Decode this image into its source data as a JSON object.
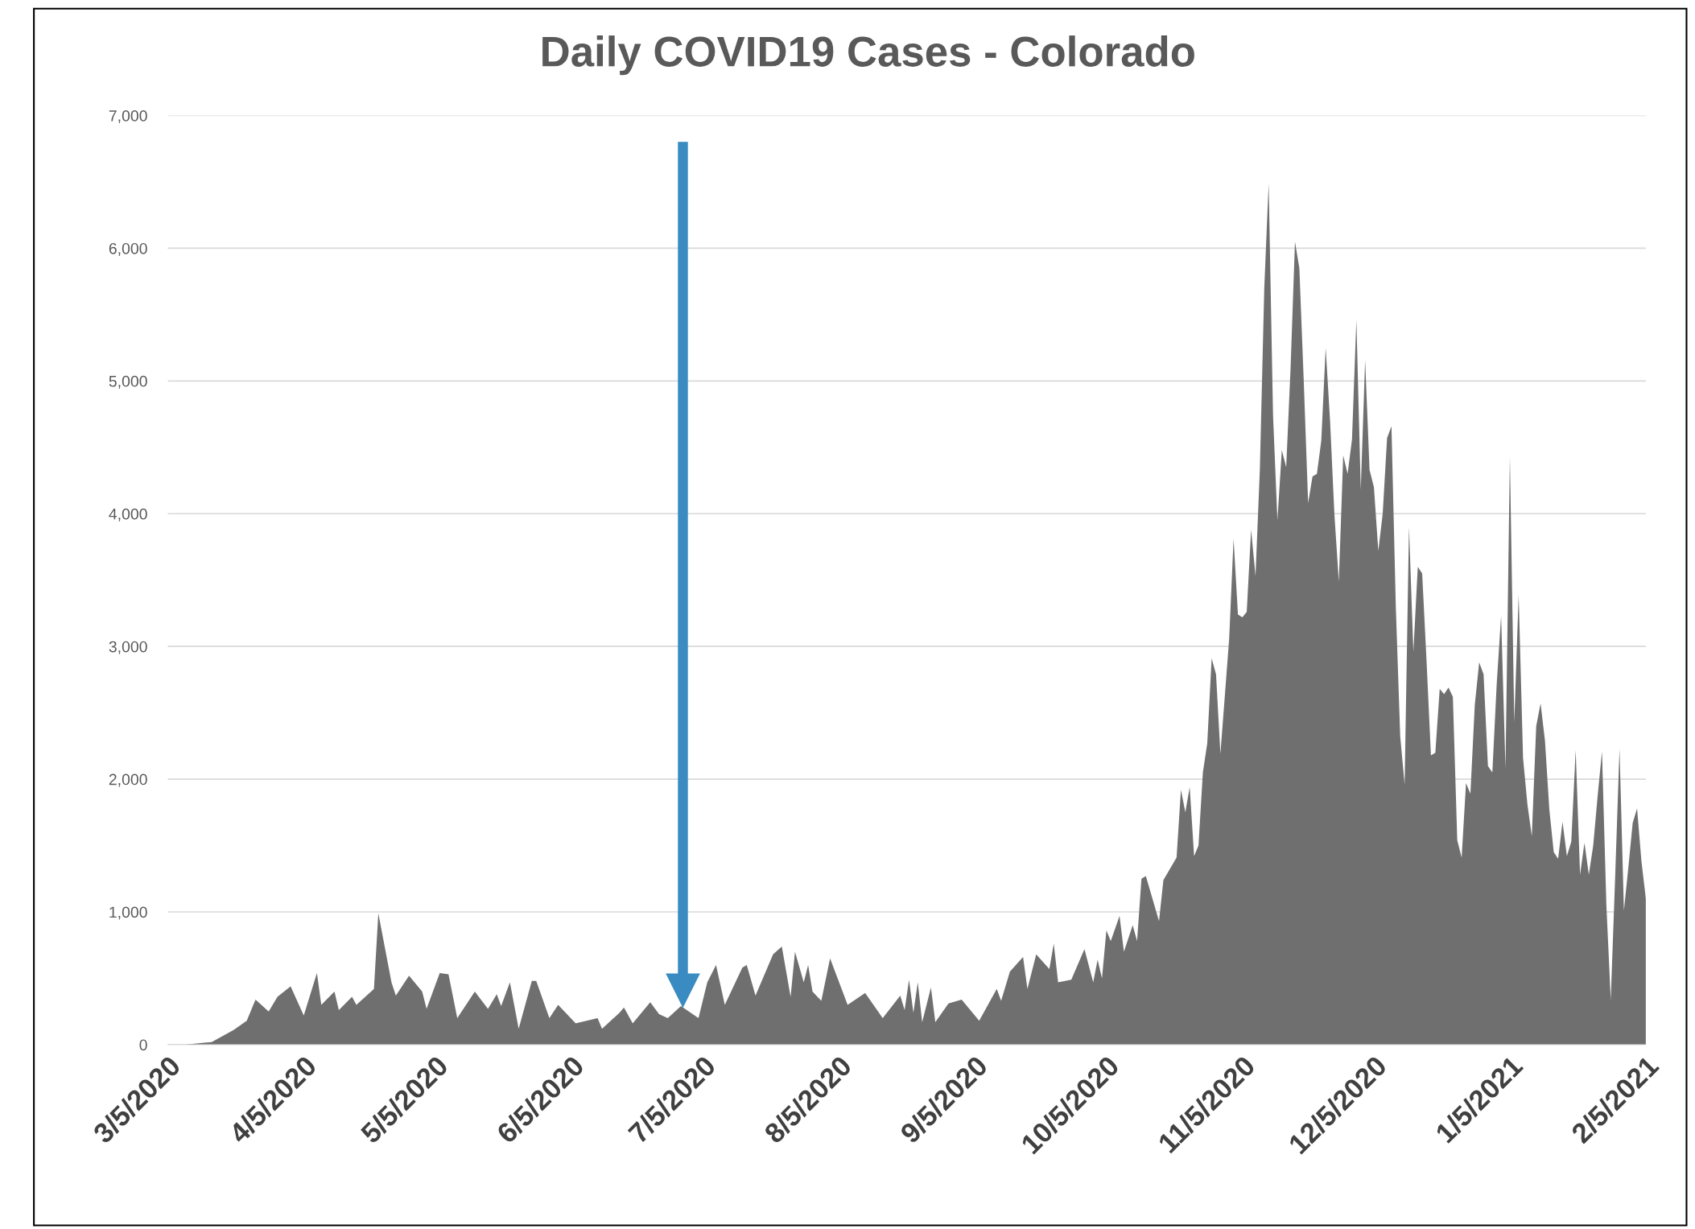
{
  "chart_data": {
    "type": "area",
    "title": "Daily COVID19 Cases - Colorado",
    "x": [
      "2020-03-09",
      "2020-03-15",
      "2020-03-20",
      "2020-03-23",
      "2020-03-25",
      "2020-03-28",
      "2020-03-30",
      "2020-04-02",
      "2020-04-05",
      "2020-04-08",
      "2020-04-09",
      "2020-04-12",
      "2020-04-13",
      "2020-04-16",
      "2020-04-17",
      "2020-04-21",
      "2020-04-22",
      "2020-04-25",
      "2020-04-26",
      "2020-04-29",
      "2020-05-02",
      "2020-05-03",
      "2020-05-06",
      "2020-05-08",
      "2020-05-10",
      "2020-05-14",
      "2020-05-17",
      "2020-05-19",
      "2020-05-20",
      "2020-05-22",
      "2020-05-24",
      "2020-05-27",
      "2020-05-28",
      "2020-05-31",
      "2020-06-02",
      "2020-06-06",
      "2020-06-11",
      "2020-06-12",
      "2020-06-16",
      "2020-06-17",
      "2020-06-19",
      "2020-06-23",
      "2020-06-25",
      "2020-06-27",
      "2020-06-30",
      "2020-07-04",
      "2020-07-06",
      "2020-07-08",
      "2020-07-10",
      "2020-07-14",
      "2020-07-15",
      "2020-07-17",
      "2020-07-21",
      "2020-07-23",
      "2020-07-25",
      "2020-07-26",
      "2020-07-28",
      "2020-07-29",
      "2020-07-30",
      "2020-08-01",
      "2020-08-03",
      "2020-08-07",
      "2020-08-11",
      "2020-08-15",
      "2020-08-19",
      "2020-08-20",
      "2020-08-21",
      "2020-08-22",
      "2020-08-23",
      "2020-08-24",
      "2020-08-26",
      "2020-08-27",
      "2020-08-30",
      "2020-09-02",
      "2020-09-06",
      "2020-09-10",
      "2020-09-11",
      "2020-09-13",
      "2020-09-16",
      "2020-09-17",
      "2020-09-19",
      "2020-09-22",
      "2020-09-23",
      "2020-09-24",
      "2020-09-27",
      "2020-09-30",
      "2020-10-02",
      "2020-10-03",
      "2020-10-04",
      "2020-10-05",
      "2020-10-06",
      "2020-10-08",
      "2020-10-09",
      "2020-10-11",
      "2020-10-12",
      "2020-10-13",
      "2020-10-14",
      "2020-10-17",
      "2020-10-18",
      "2020-10-21",
      "2020-10-22",
      "2020-10-23",
      "2020-10-24",
      "2020-10-25",
      "2020-10-26",
      "2020-10-27",
      "2020-10-28",
      "2020-10-29",
      "2020-10-30",
      "2020-10-31",
      "2020-11-02",
      "2020-11-03",
      "2020-11-04",
      "2020-11-05",
      "2020-11-06",
      "2020-11-07",
      "2020-11-08",
      "2020-11-09",
      "2020-11-10",
      "2020-11-11",
      "2020-11-12",
      "2020-11-13",
      "2020-11-14",
      "2020-11-15",
      "2020-11-16",
      "2020-11-17",
      "2020-11-18",
      "2020-11-19",
      "2020-11-20",
      "2020-11-21",
      "2020-11-22",
      "2020-11-23",
      "2020-11-24",
      "2020-11-25",
      "2020-11-26",
      "2020-11-27",
      "2020-11-28",
      "2020-11-29",
      "2020-11-30",
      "2020-12-01",
      "2020-12-02",
      "2020-12-03",
      "2020-12-04",
      "2020-12-05",
      "2020-12-06",
      "2020-12-07",
      "2020-12-08",
      "2020-12-09",
      "2020-12-10",
      "2020-12-11",
      "2020-12-12",
      "2020-12-13",
      "2020-12-14",
      "2020-12-15",
      "2020-12-16",
      "2020-12-17",
      "2020-12-18",
      "2020-12-19",
      "2020-12-20",
      "2020-12-21",
      "2020-12-22",
      "2020-12-23",
      "2020-12-24",
      "2020-12-25",
      "2020-12-26",
      "2020-12-27",
      "2020-12-28",
      "2020-12-29",
      "2020-12-30",
      "2020-12-31",
      "2021-01-01",
      "2021-01-02",
      "2021-01-03",
      "2021-01-04",
      "2021-01-05",
      "2021-01-06",
      "2021-01-07",
      "2021-01-08",
      "2021-01-09",
      "2021-01-10",
      "2021-01-11",
      "2021-01-12",
      "2021-01-13",
      "2021-01-14",
      "2021-01-15",
      "2021-01-16",
      "2021-01-17",
      "2021-01-18",
      "2021-01-19",
      "2021-01-20",
      "2021-01-21",
      "2021-01-22",
      "2021-01-23",
      "2021-01-24",
      "2021-01-25",
      "2021-01-26",
      "2021-01-27",
      "2021-01-28",
      "2021-01-29",
      "2021-01-30",
      "2021-01-31",
      "2021-02-01",
      "2021-02-02",
      "2021-02-03",
      "2021-02-04",
      "2021-02-05"
    ],
    "series": [
      {
        "color": "#6f6f6f",
        "values": [
          0,
          20,
          110,
          180,
          340,
          250,
          360,
          440,
          220,
          540,
          300,
          400,
          260,
          360,
          300,
          420,
          990,
          470,
          370,
          520,
          400,
          270,
          540,
          530,
          200,
          400,
          270,
          380,
          290,
          470,
          120,
          480,
          480,
          200,
          300,
          160,
          200,
          120,
          240,
          280,
          160,
          320,
          230,
          200,
          290,
          200,
          470,
          600,
          300,
          580,
          600,
          370,
          680,
          740,
          360,
          700,
          470,
          600,
          400,
          330,
          650,
          300,
          390,
          200,
          370,
          260,
          490,
          240,
          470,
          170,
          430,
          170,
          310,
          340,
          180,
          420,
          330,
          550,
          660,
          420,
          680,
          570,
          760,
          470,
          490,
          720,
          470,
          640,
          500,
          860,
          780,
          970,
          700,
          900,
          780,
          1250,
          1270,
          930,
          1240,
          1410,
          1920,
          1750,
          1940,
          1420,
          1500,
          2050,
          2270,
          2910,
          2790,
          2190,
          3060,
          3810,
          3240,
          3220,
          3260,
          3880,
          3530,
          4340,
          5700,
          6490,
          4740,
          3950,
          4480,
          4350,
          5100,
          6050,
          5850,
          5000,
          4080,
          4280,
          4300,
          4550,
          5250,
          4700,
          3990,
          3490,
          4440,
          4300,
          4560,
          5460,
          4180,
          5160,
          4330,
          4200,
          3720,
          4000,
          4570,
          4660,
          3290,
          2320,
          1960,
          3900,
          2960,
          3600,
          3550,
          2890,
          2180,
          2200,
          2680,
          2640,
          2690,
          2620,
          1540,
          1410,
          1970,
          1890,
          2560,
          2880,
          2790,
          2100,
          2050,
          2720,
          3230,
          2080,
          4430,
          2430,
          3390,
          2160,
          1810,
          1570,
          2400,
          2570,
          2290,
          1770,
          1450,
          1400,
          1680,
          1420,
          1530,
          2220,
          1280,
          1520,
          1280,
          1500,
          1870,
          2210,
          1050,
          340,
          1260,
          2230,
          1010,
          1330,
          1670,
          1780,
          1380,
          1100
        ]
      }
    ],
    "xlim": [
      "2020-03-05",
      "2021-02-05"
    ],
    "xticks": [
      {
        "value": "2020-03-05",
        "label": "3/5/2020"
      },
      {
        "value": "2020-04-05",
        "label": "4/5/2020"
      },
      {
        "value": "2020-05-05",
        "label": "5/5/2020"
      },
      {
        "value": "2020-06-05",
        "label": "6/5/2020"
      },
      {
        "value": "2020-07-05",
        "label": "7/5/2020"
      },
      {
        "value": "2020-08-05",
        "label": "8/5/2020"
      },
      {
        "value": "2020-09-05",
        "label": "9/5/2020"
      },
      {
        "value": "2020-10-05",
        "label": "10/5/2020"
      },
      {
        "value": "2020-11-05",
        "label": "11/5/2020"
      },
      {
        "value": "2020-12-05",
        "label": "12/5/2020"
      },
      {
        "value": "2021-01-05",
        "label": "1/5/2021"
      },
      {
        "value": "2021-02-05",
        "label": "2/5/2021"
      }
    ],
    "ylim": [
      0,
      7000
    ],
    "yticks": [
      0,
      {
        "value": 1000,
        "label": "1,000"
      },
      {
        "value": 2000,
        "label": "2,000"
      },
      {
        "value": 3000,
        "label": "3,000"
      },
      {
        "value": 4000,
        "label": "4,000"
      },
      {
        "value": 5000,
        "label": "5,000"
      },
      {
        "value": 6000,
        "label": "6,000"
      },
      {
        "value": 7000,
        "label": "7,000"
      }
    ],
    "grid": "y",
    "legend": false
  }
}
